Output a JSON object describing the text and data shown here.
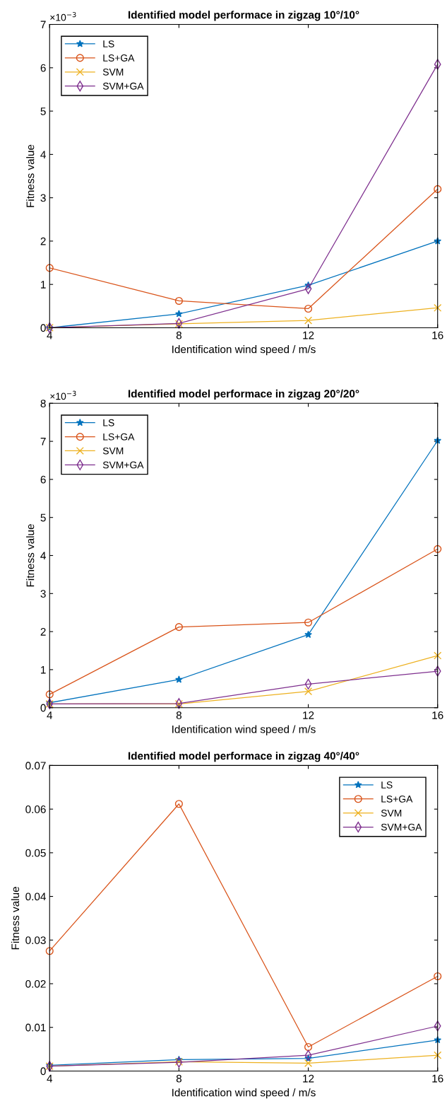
{
  "chart_data": [
    {
      "type": "line",
      "title": "Identified model performace in zigzag 10°/10°",
      "xlabel": "Identification wind speed / m/s",
      "ylabel": "Fitness value",
      "annotations": [
        "×10$^{−3}$"
      ],
      "x": [
        4,
        8,
        12,
        16
      ],
      "xlim": [
        4,
        16
      ],
      "xticks": [
        4,
        8,
        12,
        16
      ],
      "ylim": [
        0,
        7
      ],
      "yticks": [
        0,
        1,
        2,
        3,
        4,
        5,
        6,
        7
      ],
      "grid": false,
      "legend": "top left",
      "line_style": "solid",
      "series": [
        {
          "name": "LS",
          "color": "#0072bd",
          "marker": "star",
          "values": [
            0.0,
            0.32,
            0.98,
            2.0
          ]
        },
        {
          "name": "LS+GA",
          "color": "#d95319",
          "marker": "circle",
          "values": [
            1.38,
            0.62,
            0.44,
            3.2
          ]
        },
        {
          "name": "SVM",
          "color": "#edb120",
          "marker": "cross",
          "values": [
            0.0,
            0.09,
            0.17,
            0.46
          ]
        },
        {
          "name": "SVM+GA",
          "color": "#7e2f8e",
          "marker": "diamond",
          "values": [
            0.0,
            0.1,
            0.9,
            6.08
          ]
        }
      ]
    },
    {
      "type": "line",
      "title": "Identified model performace in zigzag 20°/20°",
      "xlabel": "Identification wind speed / m/s",
      "ylabel": "Fitness value",
      "annotations": [
        "×10$^{−3}$"
      ],
      "x": [
        4,
        8,
        12,
        16
      ],
      "xlim": [
        4,
        16
      ],
      "xticks": [
        4,
        8,
        12,
        16
      ],
      "ylim": [
        0,
        8
      ],
      "yticks": [
        0,
        1,
        2,
        3,
        4,
        5,
        6,
        7,
        8
      ],
      "grid": false,
      "legend": "top left",
      "line_style": "solid",
      "series": [
        {
          "name": "LS",
          "color": "#0072bd",
          "marker": "star",
          "values": [
            0.13,
            0.74,
            1.92,
            7.02
          ]
        },
        {
          "name": "LS+GA",
          "color": "#d95319",
          "marker": "circle",
          "values": [
            0.35,
            2.12,
            2.24,
            4.17
          ]
        },
        {
          "name": "SVM",
          "color": "#edb120",
          "marker": "cross",
          "values": [
            0.1,
            0.1,
            0.43,
            1.37
          ]
        },
        {
          "name": "SVM+GA",
          "color": "#7e2f8e",
          "marker": "diamond",
          "values": [
            0.1,
            0.11,
            0.62,
            0.96
          ]
        }
      ]
    },
    {
      "type": "line",
      "title": "Identified model performace in zigzag 40°/40°",
      "xlabel": "Identification wind speed / m/s",
      "ylabel": "Fitness value",
      "x": [
        4,
        8,
        12,
        16
      ],
      "xlim": [
        4,
        16
      ],
      "xticks": [
        4,
        8,
        12,
        16
      ],
      "ylim": [
        0,
        0.07
      ],
      "yticks": [
        0,
        0.01,
        0.02,
        0.03,
        0.04,
        0.05,
        0.06,
        0.07
      ],
      "grid": false,
      "legend": "top right",
      "line_style": "solid",
      "series": [
        {
          "name": "LS",
          "color": "#0072bd",
          "marker": "star",
          "values": [
            0.0013,
            0.0026,
            0.0029,
            0.0071
          ]
        },
        {
          "name": "LS+GA",
          "color": "#d95319",
          "marker": "circle",
          "values": [
            0.0275,
            0.0612,
            0.0055,
            0.0217
          ]
        },
        {
          "name": "SVM",
          "color": "#edb120",
          "marker": "cross",
          "values": [
            0.0011,
            0.0021,
            0.0018,
            0.0036
          ]
        },
        {
          "name": "SVM+GA",
          "color": "#7e2f8e",
          "marker": "diamond",
          "values": [
            0.0011,
            0.002,
            0.0036,
            0.0103
          ]
        }
      ]
    }
  ]
}
